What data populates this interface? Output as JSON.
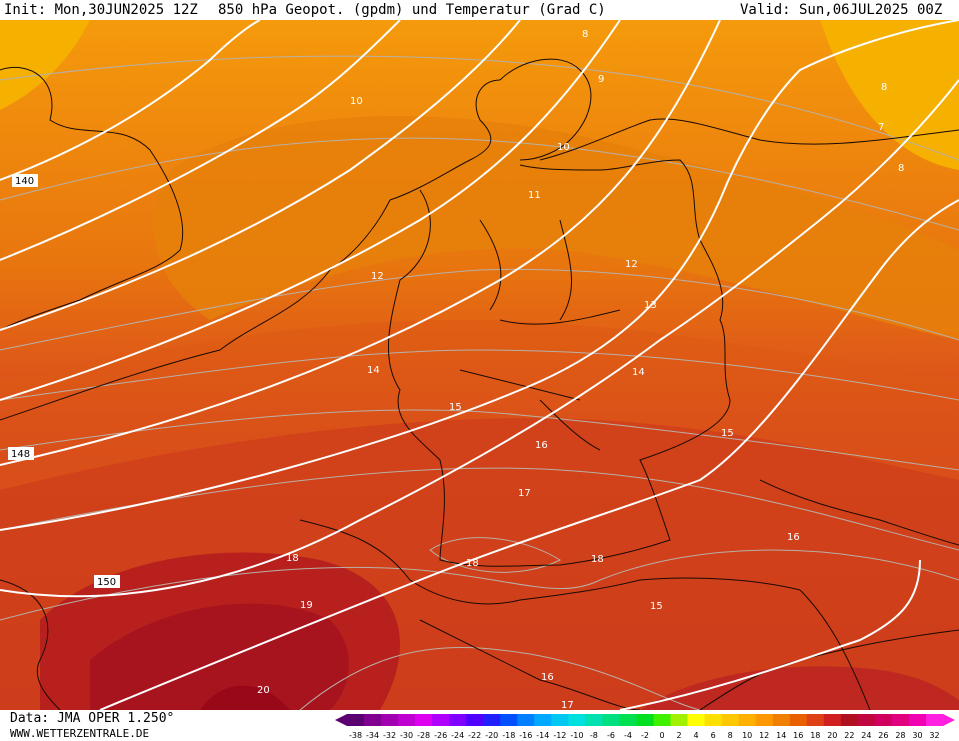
{
  "header": {
    "init": "Init: Mon,30JUN2025 12Z",
    "title": "850 hPa Geopot. (gpdm) und Temperatur (Grad C)",
    "valid": "Valid: Sun,06JUL2025 00Z"
  },
  "footer": {
    "source": "Data: JMA OPER 1.250°",
    "website": "WWW.WETTERZENTRALE.DE"
  },
  "map": {
    "region": "Europe / Germany",
    "geopotential_labels": [
      "140",
      "148",
      "150"
    ],
    "temperature_labels": [
      "7",
      "8",
      "8",
      "8",
      "9",
      "10",
      "10",
      "11",
      "12",
      "12",
      "13",
      "14",
      "14",
      "15",
      "15",
      "15",
      "16",
      "16",
      "16",
      "17",
      "17",
      "18",
      "18",
      "18",
      "19",
      "20"
    ]
  },
  "legend": {
    "ticks": [
      "-38",
      "-34",
      "-32",
      "-30",
      "-28",
      "-26",
      "-24",
      "-22",
      "-20",
      "-18",
      "-16",
      "-14",
      "-12",
      "-10",
      "-8",
      "-6",
      "-4",
      "-2",
      "0",
      "2",
      "4",
      "6",
      "8",
      "10",
      "12",
      "14",
      "16",
      "18",
      "20",
      "22",
      "24",
      "26",
      "28",
      "30",
      "32"
    ],
    "colors": [
      "#5a0070",
      "#800090",
      "#a000b0",
      "#c000d0",
      "#e000f0",
      "#b000ff",
      "#8000ff",
      "#5000ff",
      "#2020ff",
      "#0050ff",
      "#0080ff",
      "#00a8ff",
      "#00c8f0",
      "#00e0e0",
      "#00e0b0",
      "#00e080",
      "#00e050",
      "#00e020",
      "#40f000",
      "#a0f000",
      "#ffff00",
      "#ffe000",
      "#ffc800",
      "#ffb000",
      "#ff9800",
      "#f08000",
      "#e86000",
      "#e04018",
      "#d02020",
      "#b01020",
      "#c00840",
      "#d00060",
      "#e00080",
      "#f000b0",
      "#ff20e0"
    ]
  }
}
